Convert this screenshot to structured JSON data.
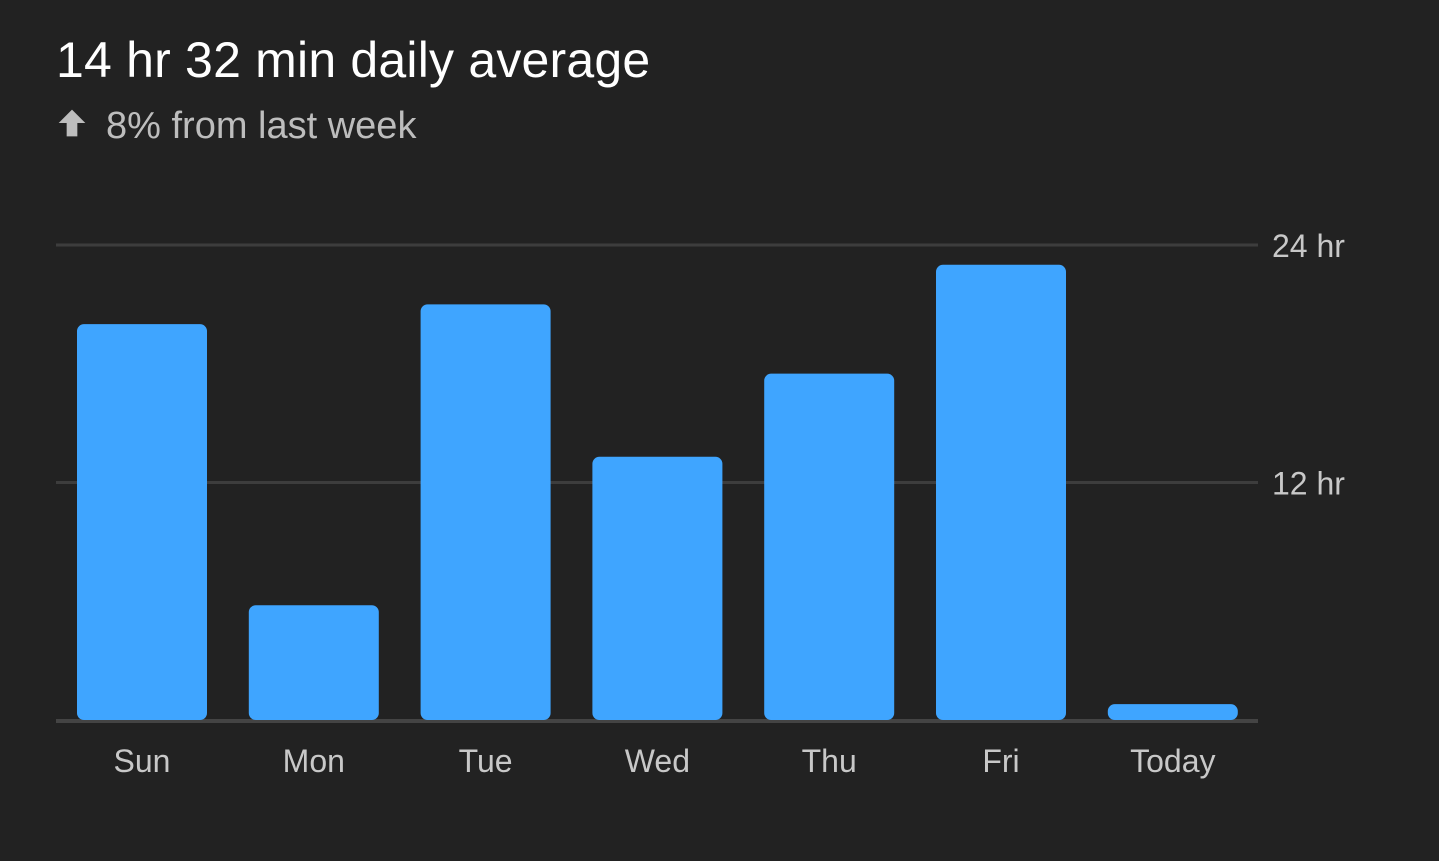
{
  "header": {
    "title": "14 hr 32 min daily average",
    "change_icon": "arrow-up-icon",
    "change_text": "8% from last week"
  },
  "colors": {
    "background": "#222222",
    "bar": "#3fa5ff",
    "gridline": "#3d3d3d",
    "baseline": "#444444",
    "title": "#ffffff",
    "secondary_text": "#bdbdbd",
    "axis_text": "#c8c8c8"
  },
  "chart_data": {
    "type": "bar",
    "categories": [
      "Sun",
      "Mon",
      "Tue",
      "Wed",
      "Thu",
      "Fri",
      "Today"
    ],
    "series": [
      {
        "values": [
          20.0,
          5.8,
          21.0,
          13.3,
          17.5,
          23.0,
          0.8
        ]
      }
    ],
    "units": "hr",
    "ylim": [
      0,
      24
    ],
    "yticks": [
      {
        "value": 12,
        "label": "12 hr"
      },
      {
        "value": 24,
        "label": "24 hr"
      }
    ],
    "ytick_position": "right",
    "grid": true,
    "legend": "none"
  }
}
